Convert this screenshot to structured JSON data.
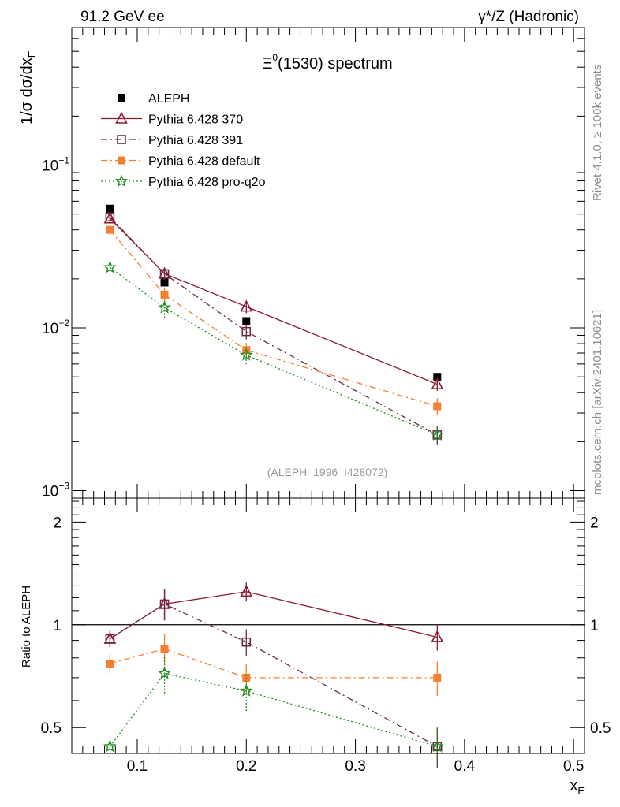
{
  "header": {
    "left": "91.2 GeV ee",
    "right": "γ*/Z (Hadronic)"
  },
  "side_labels": {
    "rivet": "Rivet 4.1.0, ≥ 100k events",
    "mcplots": "mcplots.cern.ch [arXiv:2401.10621]"
  },
  "chart_data": [
    {
      "type": "line",
      "title": "Ξ⁰(1530) spectrum",
      "title_main": "Ξ",
      "title_sup": "0",
      "title_rest": "(1530) spectrum",
      "analysis": "(ALEPH_1996_I428072)",
      "ylabel": "1/σ  dσ/dx_E",
      "yscale": "log",
      "ylim": [
        0.0009,
        0.7
      ],
      "xlim": [
        0.04,
        0.51
      ],
      "y_ticks": [
        {
          "value": 0.1,
          "base": "10",
          "exp": "−1"
        },
        {
          "value": 0.01,
          "base": "10",
          "exp": "−2"
        },
        {
          "value": 0.001,
          "base": "10",
          "exp": "−3"
        }
      ],
      "x": [
        0.075,
        0.125,
        0.2,
        0.375
      ],
      "series": [
        {
          "name": "ALEPH",
          "color": "#000000",
          "marker": "square-filled",
          "line": "none",
          "values": [
            0.054,
            0.019,
            0.011,
            0.005
          ]
        },
        {
          "name": "Pythia 6.428 370",
          "color": "#8b1a2e",
          "marker": "triangle-open",
          "line": "solid",
          "values": [
            0.047,
            0.0215,
            0.0135,
            0.0045
          ],
          "errors": [
            0.003,
            0.0018,
            0.0012,
            0.0004
          ]
        },
        {
          "name": "Pythia 6.428 391",
          "color": "#6b2a45",
          "marker": "square-open",
          "line": "dashdot",
          "values": [
            0.048,
            0.0215,
            0.0095,
            0.0022
          ],
          "errors": [
            0.003,
            0.0018,
            0.001,
            0.0003
          ]
        },
        {
          "name": "Pythia 6.428 default",
          "color": "#f47f30",
          "marker": "square-filled",
          "line": "dashdot",
          "values": [
            0.04,
            0.016,
            0.0073,
            0.0033
          ],
          "errors": [
            0.003,
            0.0015,
            0.0008,
            0.0004
          ]
        },
        {
          "name": "Pythia 6.428 pro-q2o",
          "color": "#1e8c1e",
          "marker": "star",
          "line": "dotted",
          "values": [
            0.0235,
            0.0133,
            0.0068,
            0.0022
          ],
          "errors": [
            0.002,
            0.0018,
            0.0008,
            0.0003
          ]
        }
      ]
    },
    {
      "type": "line",
      "ylabel": "Ratio to ALEPH",
      "xlabel": "x_E",
      "xlabel_main": "x",
      "xlabel_sub": "E",
      "yscale": "log",
      "ylim": [
        0.42,
        2.35
      ],
      "xlim": [
        0.04,
        0.51
      ],
      "y_ticks": [
        {
          "value": 2,
          "label": "2"
        },
        {
          "value": 1,
          "label": "1"
        },
        {
          "value": 0.5,
          "label": "0.5"
        }
      ],
      "x_ticks": [
        {
          "value": 0.1,
          "label": "0.1"
        },
        {
          "value": 0.2,
          "label": "0.2"
        },
        {
          "value": 0.3,
          "label": "0.3"
        },
        {
          "value": 0.4,
          "label": "0.4"
        },
        {
          "value": 0.5,
          "label": "0.5"
        }
      ],
      "reference_line": 1,
      "x": [
        0.075,
        0.125,
        0.2,
        0.375
      ],
      "series": [
        {
          "name": "Pythia 6.428 370",
          "color": "#8b1a2e",
          "marker": "triangle-open",
          "line": "solid",
          "values": [
            0.91,
            1.15,
            1.25,
            0.92
          ],
          "errors": [
            0.05,
            0.12,
            0.08,
            0.08
          ]
        },
        {
          "name": "Pythia 6.428 391",
          "color": "#6b2a45",
          "marker": "square-open",
          "line": "dashdot",
          "values": [
            0.91,
            1.15,
            0.89,
            0.44
          ],
          "errors": [
            0.05,
            0.12,
            0.08,
            0.06
          ]
        },
        {
          "name": "Pythia 6.428 default",
          "color": "#f47f30",
          "marker": "square-filled",
          "line": "dashdot",
          "values": [
            0.77,
            0.85,
            0.7,
            0.7
          ],
          "errors": [
            0.05,
            0.09,
            0.07,
            0.08
          ]
        },
        {
          "name": "Pythia 6.428 pro-q2o",
          "color": "#1e8c1e",
          "marker": "star",
          "line": "dotted",
          "values": [
            0.44,
            0.72,
            0.64,
            0.44
          ],
          "errors": [
            0.03,
            0.09,
            0.08,
            0.06
          ]
        }
      ]
    }
  ]
}
